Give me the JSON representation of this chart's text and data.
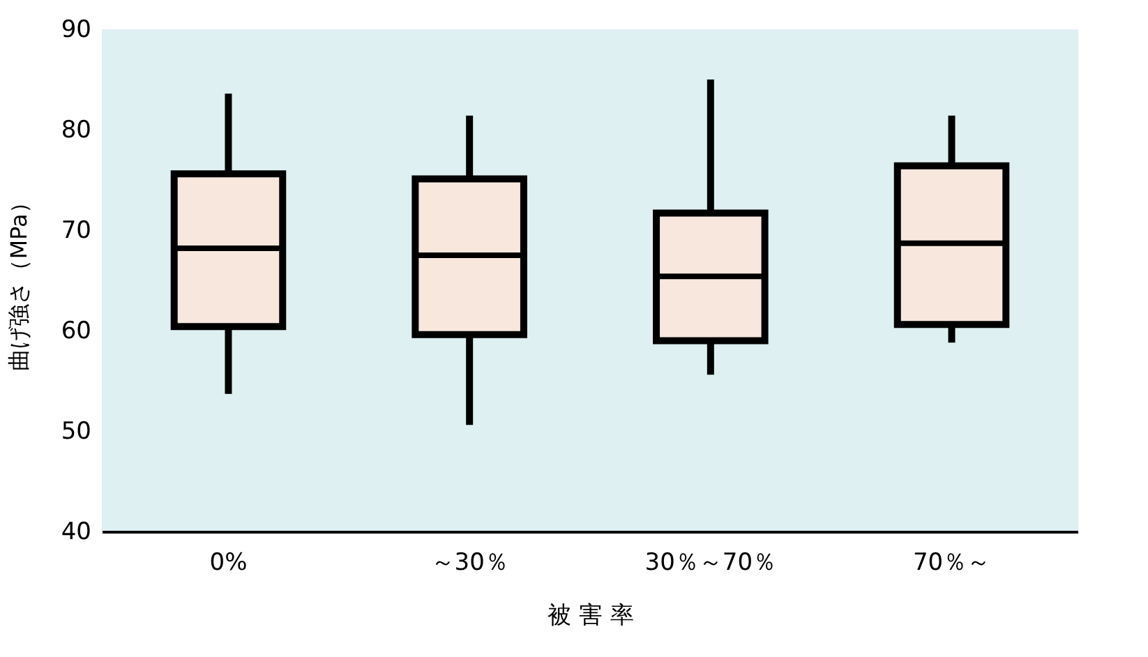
{
  "chart_data": {
    "type": "box",
    "xlabel": "被 害 率",
    "ylabel": "曲げ強さ（MPa）",
    "categories": [
      "0%",
      "～30％",
      "30％～70％",
      "70％～"
    ],
    "boxes": [
      {
        "low": 53.7,
        "q1": 60.4,
        "median": 68.2,
        "q3": 75.6,
        "high": 83.6
      },
      {
        "low": 50.6,
        "q1": 59.6,
        "median": 67.5,
        "q3": 75.1,
        "high": 81.4
      },
      {
        "low": 55.6,
        "q1": 59,
        "median": 65.4,
        "q3": 71.7,
        "high": 85
      },
      {
        "low": 58.8,
        "q1": 60.6,
        "median": 68.7,
        "q3": 76.4,
        "high": 81.4
      }
    ],
    "color": "#f7e7dd",
    "ylim": [
      40,
      90
    ],
    "yticks": [
      40,
      50,
      60,
      70,
      80,
      90
    ],
    "grid": false
  }
}
